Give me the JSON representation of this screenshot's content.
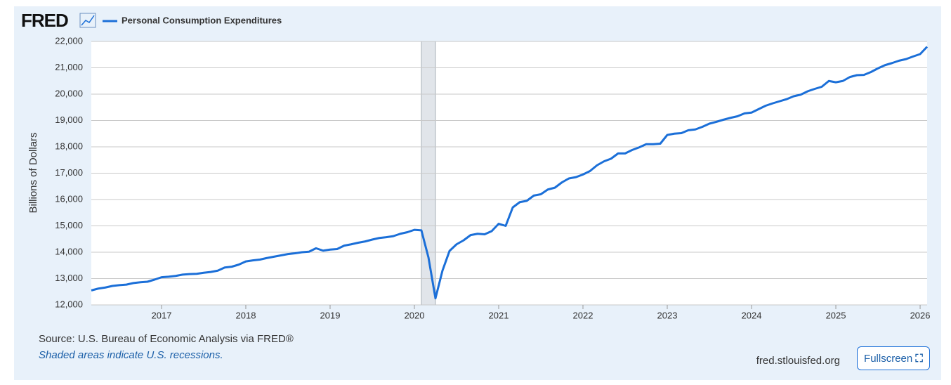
{
  "logo": "FRED",
  "button": "Fullscreen",
  "footer": {
    "source": "Source: U.S. Bureau of Economic Analysis via FRED®",
    "note": "Shaded areas indicate U.S. recessions.",
    "url": "fred.stlouisfed.org"
  },
  "chart_data": {
    "type": "line",
    "ylabel": "Billions of Dollars",
    "x": [
      2016.167,
      2016.25,
      2016.333,
      2016.417,
      2016.5,
      2016.583,
      2016.667,
      2016.75,
      2016.833,
      2016.917,
      2017,
      2017.083,
      2017.167,
      2017.25,
      2017.333,
      2017.417,
      2017.5,
      2017.583,
      2017.667,
      2017.75,
      2017.833,
      2017.917,
      2018,
      2018.083,
      2018.167,
      2018.25,
      2018.333,
      2018.417,
      2018.5,
      2018.583,
      2018.667,
      2018.75,
      2018.833,
      2018.917,
      2019,
      2019.083,
      2019.167,
      2019.25,
      2019.333,
      2019.417,
      2019.5,
      2019.583,
      2019.667,
      2019.75,
      2019.833,
      2019.917,
      2020,
      2020.083,
      2020.167,
      2020.25,
      2020.333,
      2020.417,
      2020.5,
      2020.583,
      2020.667,
      2020.75,
      2020.833,
      2020.917,
      2021,
      2021.083,
      2021.167,
      2021.25,
      2021.333,
      2021.417,
      2021.5,
      2021.583,
      2021.667,
      2021.75,
      2021.833,
      2021.917,
      2022,
      2022.083,
      2022.167,
      2022.25,
      2022.333,
      2022.417,
      2022.5,
      2022.583,
      2022.667,
      2022.75,
      2022.833,
      2022.917,
      2023,
      2023.083,
      2023.167,
      2023.25,
      2023.333,
      2023.417,
      2023.5,
      2023.583,
      2023.667,
      2023.75,
      2023.833,
      2023.917,
      2024,
      2024.083,
      2024.167,
      2024.25,
      2024.333,
      2024.417,
      2024.5,
      2024.583,
      2024.667,
      2024.75,
      2024.833,
      2024.917,
      2025,
      2025.083,
      2025.167,
      2025.25,
      2025.333,
      2025.417,
      2025.5,
      2025.583,
      2025.667,
      2025.75,
      2025.833,
      2025.917,
      2026,
      2026.083
    ],
    "series": [
      {
        "name": "Personal Consumption Expenditures",
        "color": "#1b6fd8",
        "values": [
          12550,
          12620,
          12660,
          12720,
          12750,
          12770,
          12830,
          12860,
          12880,
          12960,
          13050,
          13070,
          13100,
          13150,
          13170,
          13180,
          13220,
          13250,
          13300,
          13420,
          13450,
          13530,
          13650,
          13690,
          13720,
          13780,
          13830,
          13880,
          13930,
          13960,
          14000,
          14020,
          14150,
          14060,
          14100,
          14120,
          14250,
          14300,
          14360,
          14410,
          14480,
          14540,
          14570,
          14610,
          14700,
          14760,
          14850,
          14830,
          13800,
          12250,
          13300,
          14050,
          14300,
          14450,
          14650,
          14700,
          14680,
          14800,
          15080,
          15000,
          15700,
          15900,
          15950,
          16150,
          16200,
          16380,
          16450,
          16650,
          16800,
          16850,
          16950,
          17080,
          17300,
          17450,
          17550,
          17750,
          17750,
          17880,
          17980,
          18100,
          18100,
          18120,
          18450,
          18500,
          18520,
          18630,
          18660,
          18760,
          18880,
          18950,
          19030,
          19100,
          19160,
          19270,
          19300,
          19430,
          19560,
          19650,
          19730,
          19810,
          19920,
          19980,
          20110,
          20200,
          20280,
          20500,
          20450,
          20500,
          20650,
          20720,
          20730,
          20840,
          20980,
          21100,
          21180,
          21270,
          21330,
          21430,
          21520,
          21800
        ]
      }
    ],
    "recessions": [
      [
        2020.083,
        2020.25
      ]
    ],
    "xlim": [
      2016.167,
      2026.083
    ],
    "xticks": [
      2017,
      2018,
      2019,
      2020,
      2021,
      2022,
      2023,
      2024,
      2025,
      2026
    ],
    "ylim": [
      12000,
      22000
    ],
    "yticks": [
      {
        "value": 12000,
        "label": "12,000"
      },
      {
        "value": 13000,
        "label": "13,000"
      },
      {
        "value": 14000,
        "label": "14,000"
      },
      {
        "value": 15000,
        "label": "15,000"
      },
      {
        "value": 16000,
        "label": "16,000"
      },
      {
        "value": 17000,
        "label": "17,000"
      },
      {
        "value": 18000,
        "label": "18,000"
      },
      {
        "value": 19000,
        "label": "19,000"
      },
      {
        "value": 20000,
        "label": "20,000"
      },
      {
        "value": 21000,
        "label": "21,000"
      },
      {
        "value": 22000,
        "label": "22,000"
      }
    ],
    "grid": true
  }
}
